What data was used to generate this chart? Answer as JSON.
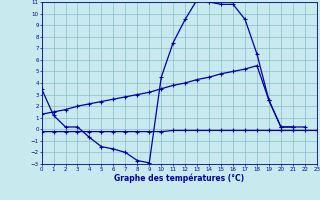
{
  "xlabel": "Graphe des températures (°C)",
  "xlim": [
    0,
    23
  ],
  "ylim": [
    -3,
    11
  ],
  "ytick_vals": [
    11,
    10,
    9,
    8,
    7,
    6,
    5,
    4,
    3,
    2,
    1,
    0,
    -1,
    -2,
    -3
  ],
  "xtick_vals": [
    0,
    1,
    2,
    3,
    4,
    5,
    6,
    7,
    8,
    9,
    10,
    11,
    12,
    13,
    14,
    15,
    16,
    17,
    18,
    19,
    20,
    21,
    22,
    23
  ],
  "bg_color": "#c8eaee",
  "grid_color": "#8abccc",
  "line_color": "#0000aa",
  "c1_x": [
    0,
    1,
    2,
    3,
    4,
    5,
    6,
    7,
    8,
    9,
    10,
    11,
    12,
    13,
    14,
    15,
    16,
    17,
    18,
    19,
    20,
    21,
    22
  ],
  "c1_y": [
    3.5,
    1.2,
    0.2,
    0.2,
    -0.7,
    -1.5,
    -1.7,
    -2.0,
    -2.7,
    -2.9,
    4.5,
    7.5,
    9.5,
    11.2,
    11.0,
    10.8,
    10.8,
    9.5,
    6.5,
    2.5,
    0.2,
    0.2,
    0.2
  ],
  "c2_x": [
    0,
    1,
    2,
    3,
    4,
    5,
    6,
    7,
    8,
    9,
    10,
    11,
    12,
    13,
    14,
    15,
    16,
    17,
    18,
    19,
    20,
    21
  ],
  "c2_y": [
    1.3,
    1.5,
    1.7,
    2.0,
    2.2,
    2.4,
    2.6,
    2.8,
    3.0,
    3.2,
    3.5,
    3.8,
    4.0,
    4.3,
    4.5,
    4.8,
    5.0,
    5.2,
    5.5,
    2.5,
    0.2,
    0.2
  ],
  "c3_x": [
    0,
    1,
    2,
    3,
    4,
    5,
    6,
    7,
    8,
    9,
    10,
    11,
    12,
    13,
    14,
    15,
    16,
    17,
    18,
    19,
    20,
    21,
    22,
    23
  ],
  "c3_y": [
    -0.2,
    -0.2,
    -0.2,
    -0.2,
    -0.2,
    -0.2,
    -0.2,
    -0.2,
    -0.2,
    -0.2,
    -0.2,
    -0.1,
    -0.1,
    -0.1,
    -0.1,
    -0.1,
    -0.1,
    -0.1,
    -0.1,
    -0.1,
    -0.1,
    -0.1,
    -0.1,
    -0.1
  ]
}
